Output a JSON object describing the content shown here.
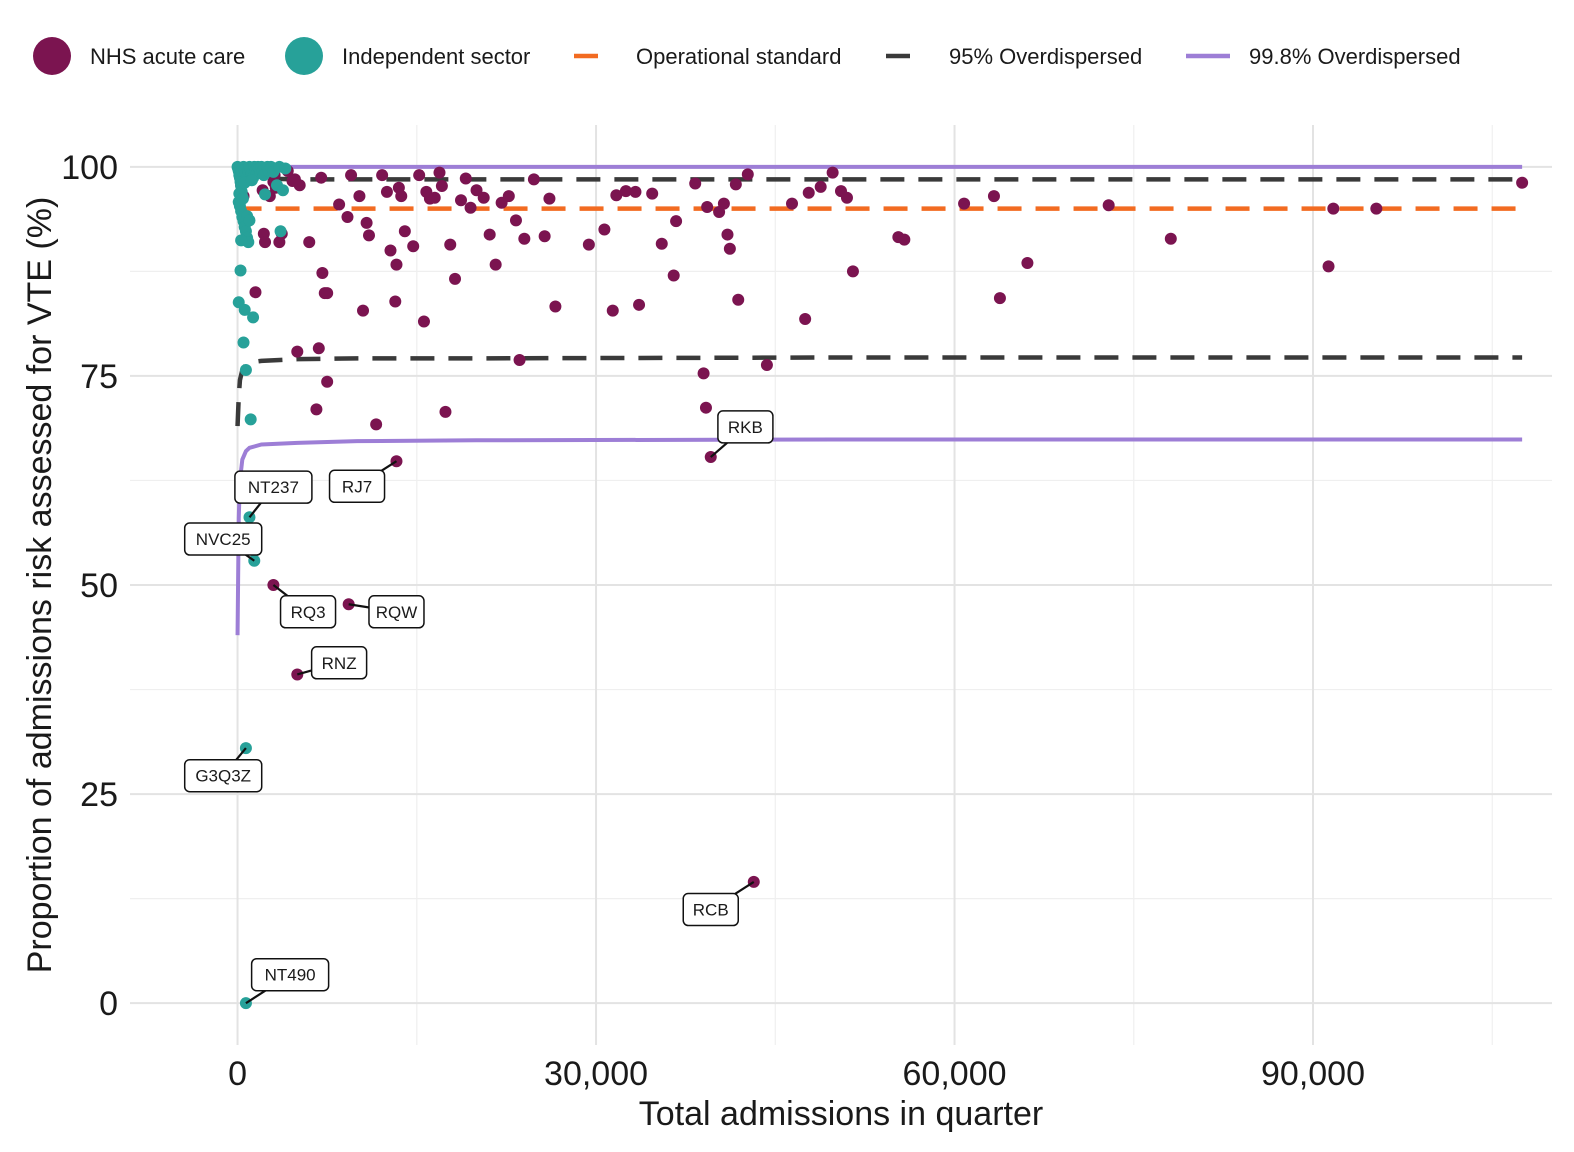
{
  "chart_data": {
    "type": "scatter",
    "xlabel": "Total admissions in quarter",
    "ylabel": "Proportion of admissions risk assessed for VTE (%)",
    "xlim": [
      -9000,
      110000
    ],
    "ylim": [
      -5,
      105
    ],
    "x_ticks": [
      0,
      30000,
      60000,
      90000
    ],
    "x_tick_labels": [
      "0",
      "30,000",
      "60,000",
      "90,000"
    ],
    "y_ticks": [
      0,
      25,
      50,
      75,
      100
    ],
    "y_tick_labels": [
      "0",
      "25",
      "50",
      "75",
      "100"
    ],
    "grid": true,
    "legend_position": "top",
    "colors": {
      "nhs": "#7b1450",
      "independent": "#27a199",
      "operational": "#f26b21",
      "overdispersed95": "#3a3a3a",
      "overdispersed998": "#9d7ed6"
    },
    "legend": [
      {
        "key": "nhs",
        "label": "NHS acute care",
        "kind": "point"
      },
      {
        "key": "independent",
        "label": "Independent sector",
        "kind": "point"
      },
      {
        "key": "operational",
        "label": "Operational standard",
        "kind": "dash"
      },
      {
        "key": "overdispersed95",
        "label": "95% Overdispersed",
        "kind": "dash"
      },
      {
        "key": "overdispersed998",
        "label": "99.8% Overdispersed",
        "kind": "solid"
      }
    ],
    "operational_standard": 95,
    "limits_x": [
      0,
      100,
      200,
      400,
      700,
      1000,
      2000,
      5000,
      10000,
      20000,
      50000,
      107500
    ],
    "limits_95_lower": [
      69,
      72.5,
      74.5,
      75.7,
      76.3,
      76.6,
      76.8,
      77.0,
      77.1,
      77.1,
      77.2,
      77.2
    ],
    "limits_95_upper": [
      99.5,
      99.2,
      99.0,
      98.8,
      98.7,
      98.6,
      98.6,
      98.5,
      98.5,
      98.5,
      98.5,
      98.5
    ],
    "limits_998_lower": [
      44,
      58,
      62.5,
      65,
      66,
      66.4,
      66.8,
      67.0,
      67.2,
      67.3,
      67.4,
      67.4
    ],
    "limits_998_upper": [
      100,
      100,
      100,
      100,
      100,
      100,
      100,
      100,
      100,
      100,
      100,
      100
    ],
    "series": [
      {
        "name": "NHS acute care",
        "key": "nhs",
        "points": [
          [
            300,
            97.8
          ],
          [
            500,
            96.5
          ],
          [
            1500,
            85
          ],
          [
            2100,
            97.2
          ],
          [
            2200,
            92
          ],
          [
            2300,
            91
          ],
          [
            3100,
            99
          ],
          [
            3200,
            97.5
          ],
          [
            3500,
            91
          ],
          [
            3700,
            92
          ],
          [
            4200,
            99.5
          ],
          [
            4800,
            98.5
          ],
          [
            5200,
            97.8
          ],
          [
            6000,
            91
          ],
          [
            7000,
            98.7
          ],
          [
            7100,
            87.3
          ],
          [
            7300,
            84.9
          ],
          [
            7500,
            74.3
          ],
          [
            8500,
            95.5
          ],
          [
            9200,
            94
          ],
          [
            9500,
            99
          ],
          [
            10200,
            96.5
          ],
          [
            10500,
            82.8
          ],
          [
            10800,
            93.3
          ],
          [
            11000,
            91.8
          ],
          [
            12100,
            99
          ],
          [
            12500,
            97
          ],
          [
            12800,
            90
          ],
          [
            13200,
            83.9
          ],
          [
            13300,
            88.3
          ],
          [
            13500,
            97.5
          ],
          [
            13700,
            96.5
          ],
          [
            14000,
            92.3
          ],
          [
            14700,
            90.5
          ],
          [
            15200,
            99
          ],
          [
            15600,
            81.5
          ],
          [
            15800,
            97
          ],
          [
            16100,
            96.2
          ],
          [
            16500,
            96.3
          ],
          [
            16900,
            99.3
          ],
          [
            17100,
            97.7
          ],
          [
            17400,
            70.7
          ],
          [
            17800,
            90.7
          ],
          [
            18200,
            86.6
          ],
          [
            18700,
            96
          ],
          [
            19100,
            98.6
          ],
          [
            19500,
            95.1
          ],
          [
            20000,
            97.2
          ],
          [
            20600,
            96.3
          ],
          [
            21100,
            91.9
          ],
          [
            21600,
            88.3
          ],
          [
            22100,
            95.7
          ],
          [
            22700,
            96.5
          ],
          [
            23300,
            93.6
          ],
          [
            23600,
            76.9
          ],
          [
            24000,
            91.4
          ],
          [
            24800,
            98.5
          ],
          [
            25700,
            91.7
          ],
          [
            26100,
            96.2
          ],
          [
            26600,
            83.3
          ],
          [
            29400,
            90.7
          ],
          [
            30700,
            92.5
          ],
          [
            31400,
            82.8
          ],
          [
            31700,
            96.6
          ],
          [
            32500,
            97.1
          ],
          [
            33300,
            97
          ],
          [
            33600,
            83.5
          ],
          [
            34700,
            96.8
          ],
          [
            35500,
            90.8
          ],
          [
            36500,
            87
          ],
          [
            36700,
            93.5
          ],
          [
            38300,
            98
          ],
          [
            39000,
            75.3
          ],
          [
            39200,
            71.2
          ],
          [
            39300,
            95.2
          ],
          [
            39600,
            65.3
          ],
          [
            40300,
            94.6
          ],
          [
            40700,
            95.6
          ],
          [
            41000,
            91.9
          ],
          [
            41200,
            90.2
          ],
          [
            41700,
            97.9
          ],
          [
            41900,
            84.1
          ],
          [
            42700,
            99.1
          ],
          [
            43200,
            14.5
          ],
          [
            44300,
            76.3
          ],
          [
            46400,
            95.6
          ],
          [
            47500,
            81.8
          ],
          [
            47800,
            96.9
          ],
          [
            48800,
            97.6
          ],
          [
            49800,
            99.3
          ],
          [
            50500,
            97.1
          ],
          [
            51000,
            96.3
          ],
          [
            51500,
            87.5
          ],
          [
            55300,
            91.6
          ],
          [
            55800,
            91.3
          ],
          [
            60800,
            95.6
          ],
          [
            63300,
            96.5
          ],
          [
            63800,
            84.3
          ],
          [
            66100,
            88.5
          ],
          [
            72900,
            95.4
          ],
          [
            78100,
            91.4
          ],
          [
            91300,
            88.1
          ],
          [
            91700,
            95
          ],
          [
            95300,
            95
          ],
          [
            107500,
            98.1
          ],
          [
            700,
            99.6
          ],
          [
            2700,
            96.5
          ],
          [
            3000,
            98.2
          ],
          [
            4600,
            98.3
          ],
          [
            7500,
            84.9
          ],
          [
            11600,
            69.2
          ],
          [
            6800,
            78.3
          ],
          [
            5000,
            77.9
          ],
          [
            6600,
            71
          ],
          [
            13300,
            64.8
          ],
          [
            3000,
            50
          ],
          [
            9300,
            47.7
          ],
          [
            5000,
            39.3
          ]
        ]
      },
      {
        "name": "Independent sector",
        "key": "independent",
        "points": [
          [
            0,
            100
          ],
          [
            50,
            99.8
          ],
          [
            100,
            99.5
          ],
          [
            150,
            99
          ],
          [
            200,
            98.7
          ],
          [
            250,
            98.2
          ],
          [
            300,
            97.7
          ],
          [
            350,
            97
          ],
          [
            400,
            96.4
          ],
          [
            100,
            95.8
          ],
          [
            200,
            95.3
          ],
          [
            300,
            94.7
          ],
          [
            400,
            94
          ],
          [
            500,
            93.5
          ],
          [
            600,
            92.8
          ],
          [
            700,
            92.3
          ],
          [
            800,
            91.5
          ],
          [
            900,
            91
          ],
          [
            200,
            98.8
          ],
          [
            350,
            99.5
          ],
          [
            500,
            100
          ],
          [
            600,
            99.6
          ],
          [
            700,
            99.2
          ],
          [
            800,
            98.8
          ],
          [
            900,
            99.5
          ],
          [
            1000,
            100
          ],
          [
            1100,
            99.7
          ],
          [
            1200,
            99.2
          ],
          [
            1300,
            98.7
          ],
          [
            1400,
            100
          ],
          [
            1500,
            99.6
          ],
          [
            1600,
            99.2
          ],
          [
            1700,
            100
          ],
          [
            1800,
            99.8
          ],
          [
            1900,
            99.3
          ],
          [
            2000,
            100
          ],
          [
            2100,
            99.5
          ],
          [
            2200,
            99
          ],
          [
            2300,
            96.7
          ],
          [
            2500,
            100
          ],
          [
            2600,
            99.5
          ],
          [
            2800,
            100
          ],
          [
            3000,
            99.4
          ],
          [
            3300,
            97.8
          ],
          [
            3500,
            100
          ],
          [
            3600,
            92.3
          ],
          [
            3800,
            97.2
          ],
          [
            4000,
            99.8
          ],
          [
            250,
            87.6
          ],
          [
            100,
            83.8
          ],
          [
            600,
            82.9
          ],
          [
            1300,
            82
          ],
          [
            500,
            79
          ],
          [
            700,
            75.7
          ],
          [
            1100,
            69.8
          ],
          [
            1000,
            58.1
          ],
          [
            1400,
            52.9
          ],
          [
            700,
            30.5
          ],
          [
            700,
            0
          ],
          [
            150,
            96.8
          ],
          [
            450,
            96.2
          ],
          [
            800,
            94.1
          ],
          [
            1000,
            93.6
          ],
          [
            300,
            91.2
          ],
          [
            600,
            98.1
          ],
          [
            1200,
            98.4
          ]
        ]
      }
    ],
    "labels": [
      {
        "text": "RKB",
        "x": 39600,
        "y": 65.3,
        "box_x": 42500,
        "box_y": 68.9
      },
      {
        "text": "NT237",
        "x": 1000,
        "y": 58.1,
        "box_x": 3000,
        "box_y": 61.7
      },
      {
        "text": "RJ7",
        "x": 13300,
        "y": 64.8,
        "box_x": 10000,
        "box_y": 61.8
      },
      {
        "text": "NVC25",
        "x": 1400,
        "y": 52.9,
        "box_x": -1200,
        "box_y": 55.5
      },
      {
        "text": "RQ3",
        "x": 3000,
        "y": 50,
        "box_x": 5900,
        "box_y": 46.8
      },
      {
        "text": "RQW",
        "x": 9300,
        "y": 47.7,
        "box_x": 13300,
        "box_y": 46.8
      },
      {
        "text": "RNZ",
        "x": 5000,
        "y": 39.3,
        "box_x": 8500,
        "box_y": 40.7
      },
      {
        "text": "G3Q3Z",
        "x": 700,
        "y": 30.5,
        "box_x": -1200,
        "box_y": 27.2
      },
      {
        "text": "RCB",
        "x": 43200,
        "y": 14.5,
        "box_x": 39600,
        "box_y": 11.2
      },
      {
        "text": "NT490",
        "x": 700,
        "y": 0,
        "box_x": 4400,
        "box_y": 3.4
      }
    ]
  }
}
